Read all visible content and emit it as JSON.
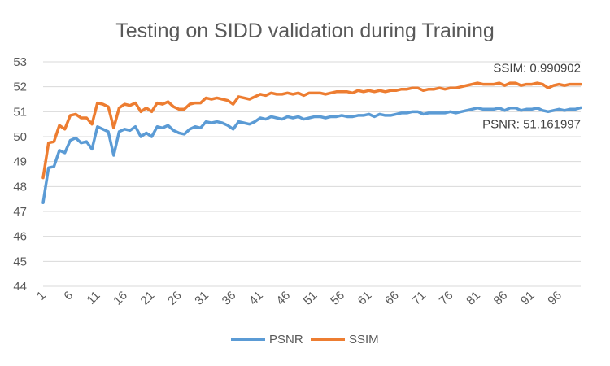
{
  "chart_data": {
    "type": "line",
    "title": "Testing on SIDD validation during Training",
    "xlabel": "",
    "ylabel": "",
    "ylim": [
      44,
      53
    ],
    "yticks": [
      44,
      45,
      46,
      47,
      48,
      49,
      50,
      51,
      52,
      53
    ],
    "xlim": [
      1,
      100
    ],
    "xticks": [
      1,
      6,
      11,
      16,
      21,
      26,
      31,
      36,
      41,
      46,
      51,
      56,
      61,
      66,
      71,
      76,
      81,
      86,
      91,
      96
    ],
    "grid": true,
    "legend_position": "bottom",
    "series": [
      {
        "name": "PSNR",
        "color": "#5B9BD5",
        "values": [
          47.35,
          48.75,
          48.8,
          49.45,
          49.35,
          49.85,
          49.95,
          49.75,
          49.8,
          49.5,
          50.4,
          50.3,
          50.2,
          49.25,
          50.2,
          50.3,
          50.25,
          50.4,
          50.0,
          50.15,
          50.0,
          50.4,
          50.35,
          50.45,
          50.25,
          50.15,
          50.1,
          50.3,
          50.4,
          50.35,
          50.6,
          50.55,
          50.6,
          50.55,
          50.45,
          50.3,
          50.6,
          50.55,
          50.5,
          50.6,
          50.75,
          50.7,
          50.8,
          50.75,
          50.7,
          50.8,
          50.75,
          50.8,
          50.7,
          50.75,
          50.8,
          50.8,
          50.75,
          50.8,
          50.8,
          50.85,
          50.8,
          50.8,
          50.85,
          50.85,
          50.9,
          50.8,
          50.9,
          50.85,
          50.85,
          50.9,
          50.95,
          50.95,
          51.0,
          51.0,
          50.9,
          50.95,
          50.95,
          50.95,
          50.95,
          51.0,
          50.95,
          51.0,
          51.05,
          51.1,
          51.15,
          51.1,
          51.1,
          51.1,
          51.15,
          51.05,
          51.15,
          51.15,
          51.05,
          51.1,
          51.1,
          51.15,
          51.05,
          51.0,
          51.05,
          51.1,
          51.05,
          51.1,
          51.1,
          51.16
        ]
      },
      {
        "name": "SSIM",
        "color": "#ED7D31",
        "values": [
          48.35,
          49.75,
          49.8,
          50.45,
          50.3,
          50.85,
          50.9,
          50.75,
          50.75,
          50.5,
          51.35,
          51.3,
          51.2,
          50.35,
          51.15,
          51.3,
          51.25,
          51.35,
          51.0,
          51.15,
          51.0,
          51.35,
          51.3,
          51.4,
          51.2,
          51.1,
          51.1,
          51.3,
          51.35,
          51.35,
          51.55,
          51.5,
          51.55,
          51.5,
          51.45,
          51.3,
          51.6,
          51.55,
          51.5,
          51.6,
          51.7,
          51.65,
          51.75,
          51.7,
          51.7,
          51.75,
          51.7,
          51.75,
          51.65,
          51.75,
          51.75,
          51.75,
          51.7,
          51.75,
          51.8,
          51.8,
          51.8,
          51.75,
          51.85,
          51.8,
          51.85,
          51.8,
          51.85,
          51.8,
          51.85,
          51.85,
          51.9,
          51.9,
          51.95,
          51.95,
          51.85,
          51.9,
          51.9,
          51.95,
          51.9,
          51.95,
          51.95,
          52.0,
          52.05,
          52.1,
          52.15,
          52.1,
          52.1,
          52.1,
          52.15,
          52.05,
          52.15,
          52.15,
          52.05,
          52.1,
          52.1,
          52.15,
          52.1,
          51.95,
          52.05,
          52.1,
          52.05,
          52.1,
          52.1,
          52.1
        ]
      }
    ],
    "annotations": [
      {
        "series": "SSIM",
        "text": "SSIM: 0.990902"
      },
      {
        "series": "PSNR",
        "text": "PSNR: 51.161997"
      }
    ]
  }
}
